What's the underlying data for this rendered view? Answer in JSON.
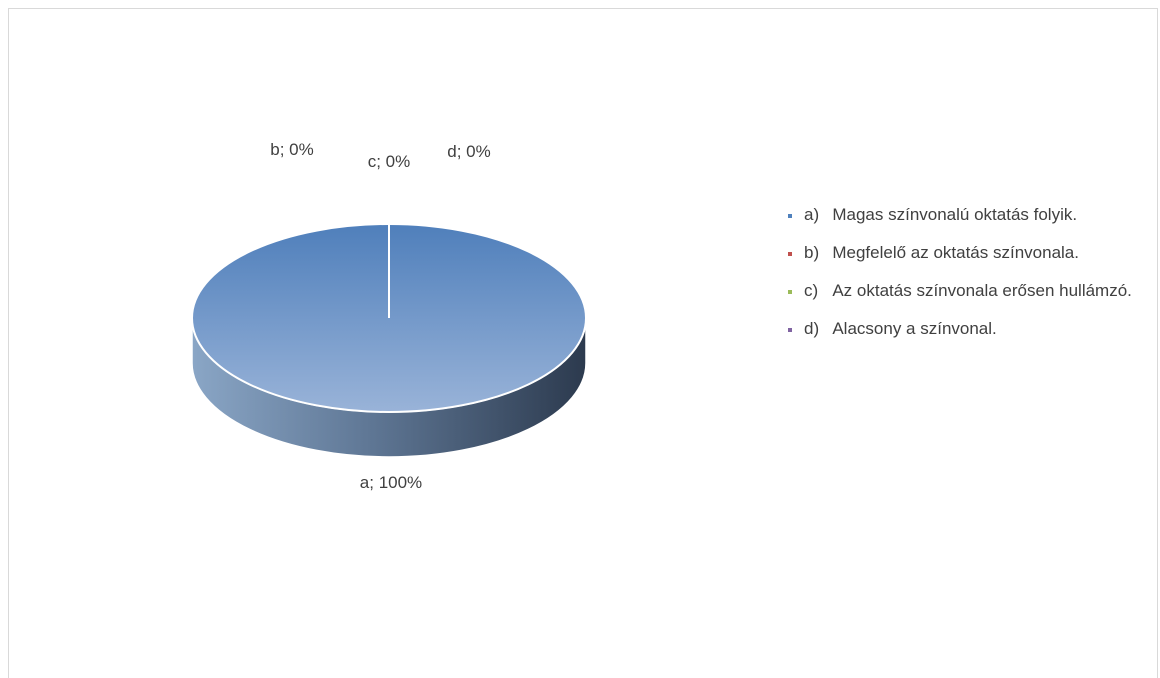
{
  "chart_data": {
    "type": "pie",
    "title": "",
    "three_d": true,
    "categories": [
      "a",
      "b",
      "c",
      "d"
    ],
    "values": [
      100,
      0,
      0,
      0
    ],
    "data_labels": [
      "a; 100%",
      "b; 0%",
      "c; 0%",
      "d; 0%"
    ],
    "legend_position": "right",
    "legend": [
      "a)\tMagas színvonalú oktatás folyik.",
      "b)\tMegfelelő az oktatás színvonala.",
      "c)\tAz oktatás színvonala erősen hullámzó.",
      "d)\tAlacsony a színvonal."
    ],
    "colors": [
      "#4f81bd",
      "#c0504d",
      "#9bbb59",
      "#8064a2"
    ]
  }
}
